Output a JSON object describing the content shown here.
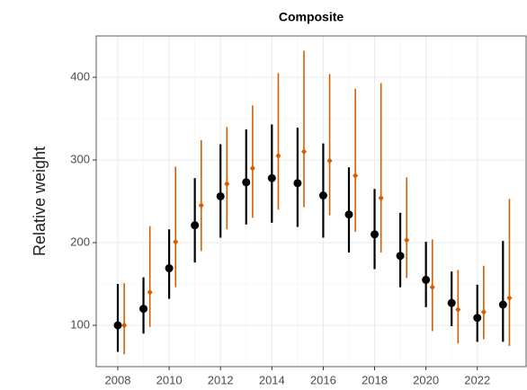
{
  "chart_data": {
    "type": "errorbar",
    "title": "Composite",
    "y_label": "Relative weight",
    "x": [
      2008,
      2009,
      2010,
      2011,
      2012,
      2013,
      2014,
      2015,
      2016,
      2017,
      2018,
      2019,
      2020,
      2021,
      2022,
      2023
    ],
    "series": [
      {
        "color": "#000000",
        "values": [
          100,
          120,
          169,
          221,
          256,
          273,
          278,
          272,
          257,
          234,
          210,
          184,
          155,
          127,
          109,
          125
        ],
        "lower": [
          68,
          90,
          132,
          176,
          206,
          222,
          224,
          219,
          206,
          188,
          168,
          146,
          122,
          99,
          80,
          80
        ],
        "upper": [
          150,
          158,
          216,
          278,
          319,
          337,
          343,
          339,
          320,
          291,
          265,
          236,
          201,
          165,
          149,
          202
        ]
      },
      {
        "color": "#d55e00",
        "values": [
          100,
          140,
          201,
          245,
          271,
          290,
          305,
          310,
          299,
          281,
          254,
          203,
          146,
          119,
          116,
          133
        ],
        "lower": [
          65,
          98,
          146,
          190,
          216,
          230,
          240,
          243,
          233,
          213,
          188,
          157,
          93,
          78,
          83,
          75
        ],
        "upper": [
          151,
          220,
          292,
          324,
          340,
          366,
          405,
          432,
          404,
          386,
          393,
          279,
          204,
          167,
          172,
          253
        ]
      }
    ],
    "xlim": [
      2007.16,
      2023.9
    ],
    "xticks": [
      2008,
      2010,
      2012,
      2014,
      2016,
      2018,
      2020,
      2022
    ],
    "ylim": [
      50,
      450
    ],
    "yticks": [
      100,
      200,
      300,
      400
    ],
    "grid": true
  }
}
